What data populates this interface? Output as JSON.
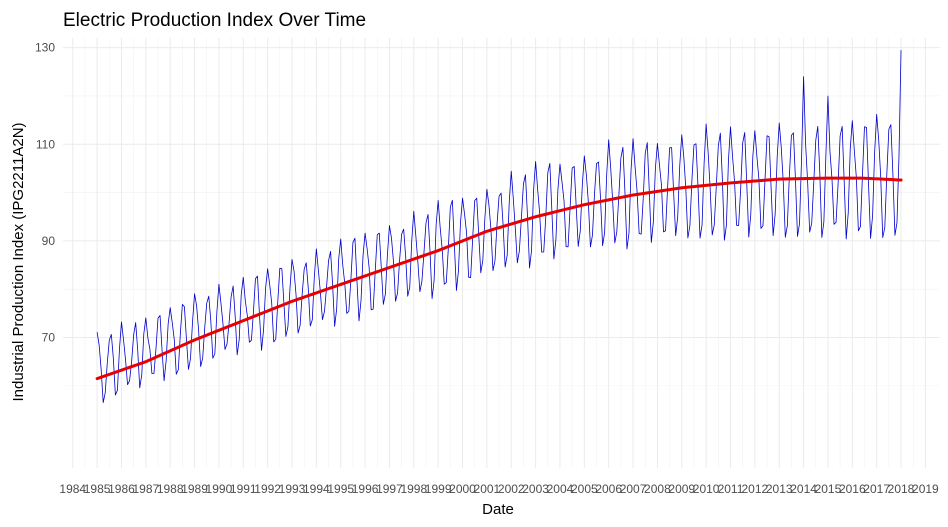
{
  "chart_data": {
    "type": "line",
    "title": "Electric Production Index Over Time",
    "xlabel": "Date",
    "ylabel": "Industrial Production Index (IPG2211A2N)",
    "ylim": [
      43,
      132
    ],
    "xlim_years": [
      1983.6,
      2019.6
    ],
    "y_ticks": [
      70,
      90,
      110,
      130
    ],
    "x_tick_labels": [
      "1984",
      "1985",
      "1986",
      "1987",
      "1988",
      "1989",
      "1990",
      "1991",
      "1992",
      "1993",
      "1994",
      "1995",
      "1996",
      "1997",
      "1998",
      "1999",
      "2000",
      "2001",
      "2002",
      "2003",
      "2004",
      "2005",
      "2006",
      "2007",
      "2008",
      "2009",
      "2010",
      "2011",
      "2012",
      "2013",
      "2014",
      "2015",
      "2016",
      "2017",
      "2018",
      "2019"
    ],
    "grid": true,
    "legend": "none",
    "colors": {
      "series": "#0000cc",
      "trend": "#e60000"
    },
    "series": [
      {
        "kind": "monthly-seasonal",
        "start": "1985-01",
        "end": "2018-01",
        "level_annual": [
          [
            1985,
            63.0
          ],
          [
            1990,
            72.5
          ],
          [
            1995,
            81.0
          ],
          [
            2000,
            89.5
          ],
          [
            2003,
            95.0
          ],
          [
            2006,
            98.5
          ],
          [
            2009,
            100.5
          ],
          [
            2012,
            101.5
          ],
          [
            2015,
            102.0
          ],
          [
            2018,
            102.5
          ]
        ],
        "amplitude_annual": [
          [
            1985,
            7.5
          ],
          [
            1995,
            9.0
          ],
          [
            2005,
            11.0
          ],
          [
            2012,
            12.5
          ],
          [
            2018,
            14.0
          ]
        ],
        "yearly_peak_overrides": [
          {
            "year": 2014,
            "peak": 124.0
          },
          {
            "year": 2015,
            "peak": 120.0
          },
          {
            "year": 2018,
            "peak": 129.5
          }
        ]
      },
      {
        "kind": "smooth-trend",
        "points": [
          [
            "1985-01",
            61.5
          ],
          [
            "1987-01",
            65.0
          ],
          [
            "1989-01",
            69.5
          ],
          [
            "1991-01",
            73.5
          ],
          [
            "1993-01",
            77.5
          ],
          [
            "1995-01",
            81.0
          ],
          [
            "1997-01",
            84.5
          ],
          [
            "1999-01",
            88.0
          ],
          [
            "2001-01",
            92.0
          ],
          [
            "2003-01",
            95.0
          ],
          [
            "2005-01",
            97.5
          ],
          [
            "2007-01",
            99.5
          ],
          [
            "2009-01",
            101.0
          ],
          [
            "2011-01",
            102.0
          ],
          [
            "2013-01",
            102.8
          ],
          [
            "2015-01",
            103.0
          ],
          [
            "2016-06",
            103.0
          ],
          [
            "2018-01",
            102.6
          ]
        ]
      }
    ]
  }
}
